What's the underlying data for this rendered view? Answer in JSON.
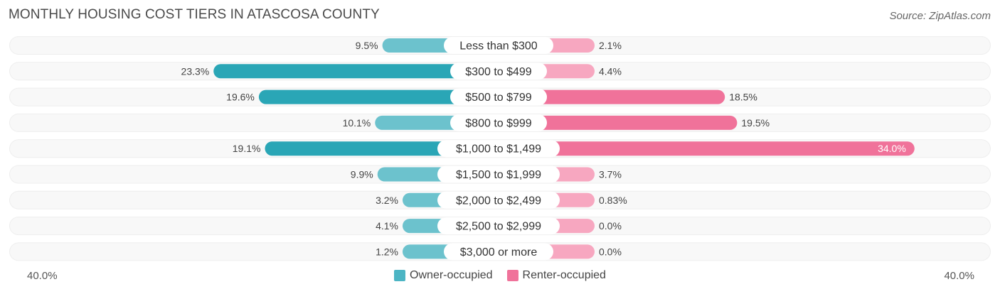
{
  "header": {
    "title": "MONTHLY HOUSING COST TIERS IN ATASCOSA COUNTY",
    "source": "Source: ZipAtlas.com"
  },
  "axis": {
    "left_label": "40.0%",
    "right_label": "40.0%"
  },
  "legend": [
    {
      "label": "Owner-occupied",
      "color": "#4cb5c4"
    },
    {
      "label": "Renter-occupied",
      "color": "#f0729a"
    }
  ],
  "colors": {
    "owner": "#6cc2cd",
    "owner_strong": "#2aa6b6",
    "renter": "#f7a7c0",
    "renter_strong": "#f0729a",
    "track": "#eeeeee"
  },
  "chart_data": {
    "type": "bar",
    "orientation": "horizontal-diverging",
    "title": "MONTHLY HOUSING COST TIERS IN ATASCOSA COUNTY",
    "xlim": [
      -40,
      40
    ],
    "categories": [
      "Less than $300",
      "$300 to $499",
      "$500 to $799",
      "$800 to $999",
      "$1,000 to $1,499",
      "$1,500 to $1,999",
      "$2,000 to $2,499",
      "$2,500 to $2,999",
      "$3,000 or more"
    ],
    "series": [
      {
        "name": "Owner-occupied",
        "values": [
          9.5,
          23.3,
          19.6,
          10.1,
          19.1,
          9.9,
          3.2,
          4.1,
          1.2
        ],
        "labels": [
          "9.5%",
          "23.3%",
          "19.6%",
          "10.1%",
          "19.1%",
          "9.9%",
          "3.2%",
          "4.1%",
          "1.2%"
        ]
      },
      {
        "name": "Renter-occupied",
        "values": [
          2.1,
          4.4,
          18.5,
          19.5,
          34.0,
          3.7,
          0.83,
          0.0,
          0.0
        ],
        "labels": [
          "2.1%",
          "4.4%",
          "18.5%",
          "19.5%",
          "34.0%",
          "3.7%",
          "0.83%",
          "0.0%",
          "0.0%"
        ]
      }
    ]
  }
}
